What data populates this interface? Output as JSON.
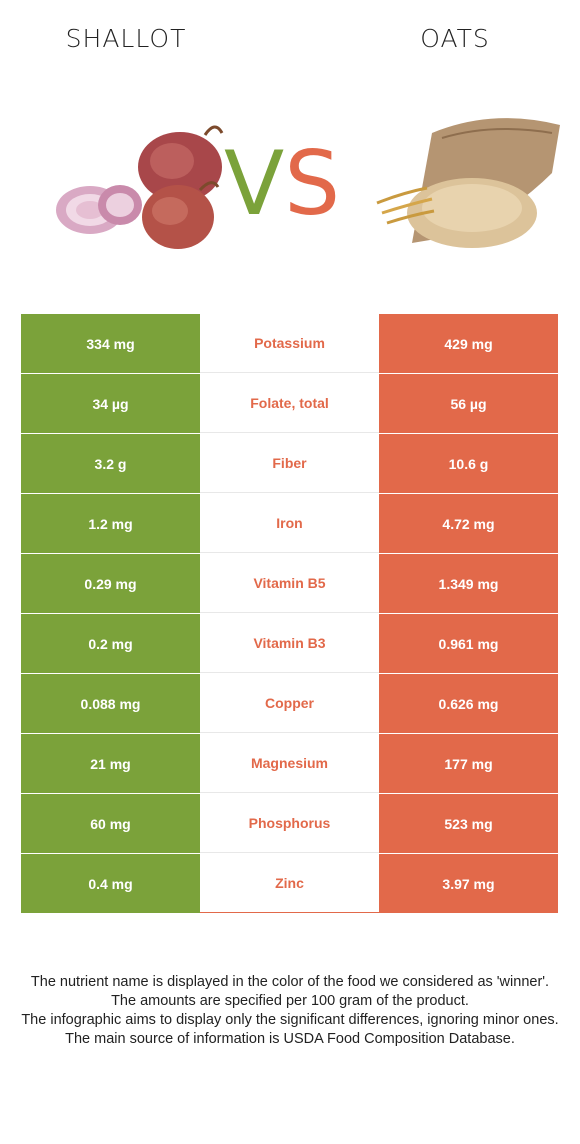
{
  "header": {
    "left_food": "SHALLOT",
    "right_food": "OATS",
    "vs_v": "V",
    "vs_s": "S"
  },
  "colors": {
    "left_accent": "#7ba23a",
    "right_accent": "#e2694a"
  },
  "rows": [
    {
      "left": "334 mg",
      "nutrient": "Potassium",
      "right": "429 mg"
    },
    {
      "left": "34 µg",
      "nutrient": "Folate, total",
      "right": "56 µg"
    },
    {
      "left": "3.2 g",
      "nutrient": "Fiber",
      "right": "10.6 g"
    },
    {
      "left": "1.2 mg",
      "nutrient": "Iron",
      "right": "4.72 mg"
    },
    {
      "left": "0.29 mg",
      "nutrient": "Vitamin B5",
      "right": "1.349 mg"
    },
    {
      "left": "0.2 mg",
      "nutrient": "Vitamin B3",
      "right": "0.961 mg"
    },
    {
      "left": "0.088 mg",
      "nutrient": "Copper",
      "right": "0.626 mg"
    },
    {
      "left": "21 mg",
      "nutrient": "Magnesium",
      "right": "177 mg"
    },
    {
      "left": "60 mg",
      "nutrient": "Phosphorus",
      "right": "523 mg"
    },
    {
      "left": "0.4 mg",
      "nutrient": "Zinc",
      "right": "3.97 mg"
    }
  ],
  "notes": [
    "The nutrient name is displayed in the color of the food we considered as 'winner'.",
    "The amounts are specified per 100 gram of the product.",
    "The infographic aims to display only the significant differences, ignoring minor ones.",
    "The main source of information is USDA Food Composition Database."
  ]
}
